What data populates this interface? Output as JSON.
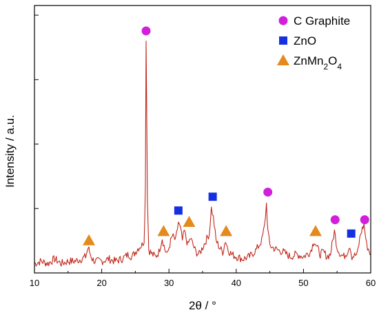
{
  "chart_data": {
    "type": "line",
    "xlabel": "2θ / °",
    "ylabel": "Intensity / a.u.",
    "xlim": [
      10,
      60
    ],
    "x_ticks": [
      10,
      20,
      30,
      40,
      50,
      60
    ],
    "y_ticks_labeled": false,
    "y_tick_count": 4,
    "grid": false,
    "legend_position": "top-right",
    "colors": {
      "line": "#c0261a",
      "graphite": "#d21fdc",
      "zno": "#1530e0",
      "znmn2o4": "#e58a1c"
    },
    "legend": [
      {
        "label": "C Graphite",
        "marker": "circle",
        "color": "#d21fdc"
      },
      {
        "label": "ZnO",
        "marker": "square",
        "color": "#1530e0"
      },
      {
        "label_parts": [
          "ZnMn",
          "2",
          "O",
          "4"
        ],
        "marker": "triangle",
        "color": "#e58a1c"
      }
    ],
    "series": [
      {
        "values_note_scale": "normalized intensity 0-1",
        "x": [
          10,
          11,
          12,
          13,
          14,
          15,
          16,
          17,
          17.6,
          18,
          18.2,
          18.6,
          19,
          20,
          21,
          22,
          23,
          24,
          24.5,
          25,
          25.5,
          26,
          26.3,
          26.5,
          26.6,
          26.8,
          27,
          27.5,
          28,
          28.5,
          29,
          29.4,
          29.8,
          30,
          30.5,
          31,
          31.4,
          31.7,
          32,
          32.3,
          32.8,
          33.2,
          33.6,
          34,
          34.5,
          35,
          35.5,
          36,
          36.3,
          36.6,
          37,
          37.5,
          38,
          38.4,
          38.8,
          39.3,
          40,
          41,
          42,
          43,
          43.8,
          44.2,
          44.5,
          44.7,
          45,
          45.4,
          46,
          47,
          48,
          49,
          50,
          51,
          51.6,
          52,
          52.5,
          53,
          53.5,
          54,
          54.6,
          55,
          55.5,
          56,
          56.5,
          56.9,
          57.2,
          58,
          58.5,
          59,
          59.4,
          60
        ],
        "y": [
          0.02,
          0.03,
          0.02,
          0.04,
          0.02,
          0.03,
          0.03,
          0.04,
          0.05,
          0.09,
          0.07,
          0.04,
          0.03,
          0.03,
          0.04,
          0.03,
          0.04,
          0.06,
          0.05,
          0.07,
          0.09,
          0.1,
          0.12,
          0.35,
          1.0,
          0.3,
          0.08,
          0.06,
          0.05,
          0.07,
          0.13,
          0.08,
          0.06,
          0.09,
          0.14,
          0.12,
          0.2,
          0.17,
          0.12,
          0.16,
          0.1,
          0.13,
          0.1,
          0.07,
          0.06,
          0.09,
          0.12,
          0.15,
          0.26,
          0.22,
          0.12,
          0.09,
          0.07,
          0.12,
          0.08,
          0.06,
          0.05,
          0.04,
          0.05,
          0.08,
          0.12,
          0.18,
          0.28,
          0.16,
          0.1,
          0.09,
          0.08,
          0.07,
          0.05,
          0.06,
          0.05,
          0.07,
          0.12,
          0.09,
          0.06,
          0.07,
          0.05,
          0.06,
          0.16,
          0.09,
          0.06,
          0.05,
          0.07,
          0.1,
          0.05,
          0.06,
          0.15,
          0.19,
          0.1,
          0.06
        ]
      }
    ],
    "phase_markers": [
      {
        "phase": "C Graphite",
        "x": [
          26.6,
          44.7,
          54.7,
          59.1
        ],
        "y": [
          1.03,
          0.33,
          0.21,
          0.21
        ]
      },
      {
        "phase": "ZnO",
        "x": [
          31.4,
          36.5,
          57.1
        ],
        "y": [
          0.25,
          0.31,
          0.15
        ]
      },
      {
        "phase": "ZnMn2O4",
        "x": [
          18.1,
          29.2,
          33.0,
          38.5,
          51.8
        ],
        "y": [
          0.12,
          0.16,
          0.2,
          0.16,
          0.16
        ]
      }
    ]
  }
}
